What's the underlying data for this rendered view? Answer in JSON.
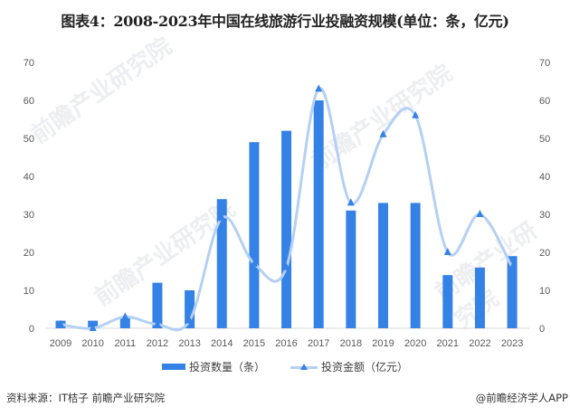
{
  "title": "图表4：2008-2023年中国在线旅游行业投融资规模(单位：条，亿元)",
  "legend": {
    "bar_label": "投资数量（条）",
    "line_label": "投资金额（亿元）"
  },
  "footer": {
    "source": "资料来源：IT桔子 前瞻产业研究院",
    "credit": "@前瞻经济学人APP"
  },
  "watermark": "前瞻产业研究院",
  "colors": {
    "bar": "#3582e6",
    "line": "#b4d0f3",
    "marker": "#3582e6",
    "axis": "#d9d9d9"
  },
  "chart_data": {
    "type": "bar",
    "title": "图表4：2008-2023年中国在线旅游行业投融资规模(单位：条，亿元)",
    "xlabel": "",
    "ylabel": "",
    "categories": [
      "2009",
      "2010",
      "2011",
      "2012",
      "2013",
      "2014",
      "2015",
      "2016",
      "2017",
      "2018",
      "2019",
      "2020",
      "2021",
      "2022",
      "2023"
    ],
    "series": [
      {
        "name": "投资数量（条）",
        "type": "bar",
        "axis": "left",
        "values": [
          2,
          2,
          3,
          12,
          10,
          34,
          49,
          52,
          60,
          31,
          33,
          33,
          14,
          16,
          19
        ]
      },
      {
        "name": "投资金额（亿元）",
        "type": "line",
        "axis": "right",
        "smooth": true,
        "marker": "triangle",
        "values": [
          1,
          0,
          3,
          1,
          2,
          29,
          17,
          16,
          63,
          33,
          51,
          56,
          20,
          30,
          16
        ]
      }
    ],
    "ylim": [
      0,
      70
    ],
    "y2lim": [
      0,
      70
    ],
    "yticks": [
      0,
      10,
      20,
      30,
      40,
      50,
      60,
      70
    ],
    "y2ticks": [
      0,
      10,
      20,
      30,
      40,
      50,
      60,
      70
    ],
    "grid": false,
    "legend_position": "bottom"
  }
}
